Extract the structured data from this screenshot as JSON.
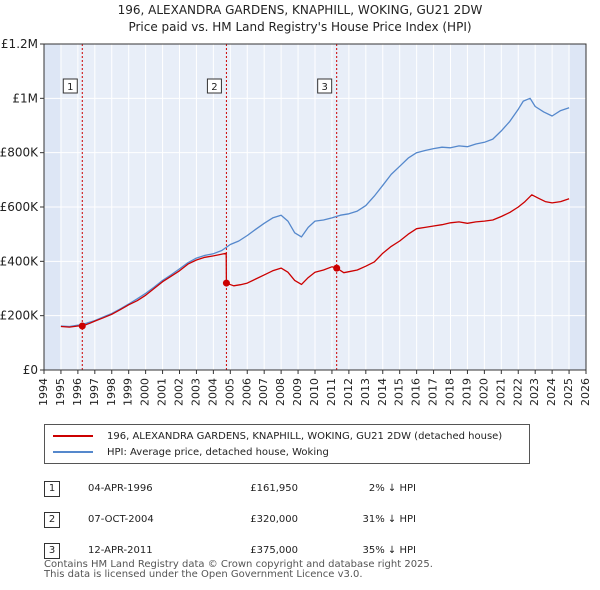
{
  "title_line1": "196, ALEXANDRA GARDENS, KNAPHILL, WOKING, GU21 2DW",
  "title_line2": "Price paid vs. HM Land Registry's House Price Index (HPI)",
  "colors": {
    "red": "#cc0000",
    "blue": "#5588cc",
    "shade": "#dde6f5",
    "grid": "#ffffff",
    "marker_line": "#cc0000"
  },
  "legend": {
    "red_label": "196, ALEXANDRA GARDENS, KNAPHILL, WOKING, GU21 2DW (detached house)",
    "blue_label": "HPI: Average price, detached house, Woking"
  },
  "sales": [
    {
      "num": "1",
      "date": "04-APR-1996",
      "price": "£161,950",
      "diff": "2% ↓ HPI"
    },
    {
      "num": "2",
      "date": "07-OCT-2004",
      "price": "£320,000",
      "diff": "31% ↓ HPI"
    },
    {
      "num": "3",
      "date": "12-APR-2011",
      "price": "£375,000",
      "diff": "35% ↓ HPI"
    }
  ],
  "footer_line1": "Contains HM Land Registry data © Crown copyright and database right 2025.",
  "footer_line2": "This data is licensed under the Open Government Licence v3.0.",
  "chart_data": {
    "type": "line",
    "title": "196, ALEXANDRA GARDENS, KNAPHILL, WOKING, GU21 2DW",
    "subtitle": "Price paid vs. HM Land Registry's House Price Index (HPI)",
    "xlim": [
      1994,
      2026
    ],
    "ylim": [
      0,
      1200000
    ],
    "x_ticks": [
      1994,
      1995,
      1996,
      1997,
      1998,
      1999,
      2000,
      2001,
      2002,
      2003,
      2004,
      2005,
      2006,
      2007,
      2008,
      2009,
      2010,
      2011,
      2012,
      2013,
      2014,
      2015,
      2016,
      2017,
      2018,
      2019,
      2020,
      2021,
      2022,
      2023,
      2024,
      2025,
      2026
    ],
    "y_ticks": [
      {
        "value": 0,
        "label": "£0"
      },
      {
        "value": 200000,
        "label": "£200K"
      },
      {
        "value": 400000,
        "label": "£400K"
      },
      {
        "value": 600000,
        "label": "£600K"
      },
      {
        "value": 800000,
        "label": "£800K"
      },
      {
        "value": 1000000,
        "label": "£1M"
      },
      {
        "value": 1200000,
        "label": "£1.2M"
      }
    ],
    "data_range": [
      1995.0,
      2025.0
    ],
    "series": [
      {
        "name": "196, ALEXANDRA GARDENS, KNAPHILL, WOKING, GU21 2DW (detached house)",
        "color": "red",
        "x": [
          1995.0,
          1995.5,
          1996.0,
          1996.26,
          1996.7,
          1997.0,
          1997.5,
          1998.0,
          1998.5,
          1999.0,
          1999.5,
          2000.0,
          2000.5,
          2001.0,
          2001.5,
          2002.0,
          2002.5,
          2003.0,
          2003.5,
          2004.0,
          2004.4,
          2004.76,
          2004.77,
          2005.2,
          2005.6,
          2006.0,
          2006.5,
          2007.0,
          2007.5,
          2008.0,
          2008.4,
          2008.8,
          2009.2,
          2009.6,
          2010.0,
          2010.5,
          2011.0,
          2011.28,
          2011.7,
          2012.0,
          2012.5,
          2013.0,
          2013.5,
          2014.0,
          2014.5,
          2015.0,
          2015.5,
          2016.0,
          2016.5,
          2017.0,
          2017.5,
          2018.0,
          2018.5,
          2019.0,
          2019.5,
          2020.0,
          2020.5,
          2021.0,
          2021.5,
          2022.0,
          2022.4,
          2022.8,
          2023.2,
          2023.6,
          2024.0,
          2024.5,
          2025.0
        ],
        "y": [
          160000,
          158000,
          162000,
          161950,
          172000,
          180000,
          192000,
          205000,
          222000,
          240000,
          255000,
          275000,
          300000,
          325000,
          345000,
          365000,
          390000,
          405000,
          415000,
          420000,
          425000,
          430000,
          320000,
          310000,
          314000,
          320000,
          335000,
          350000,
          365000,
          375000,
          360000,
          330000,
          315000,
          340000,
          360000,
          368000,
          380000,
          375000,
          358000,
          362000,
          368000,
          382000,
          398000,
          430000,
          455000,
          475000,
          500000,
          520000,
          525000,
          530000,
          535000,
          542000,
          545000,
          540000,
          545000,
          548000,
          552000,
          565000,
          580000,
          600000,
          620000,
          645000,
          632000,
          620000,
          615000,
          620000,
          630000
        ]
      },
      {
        "name": "HPI: Average price, detached house, Woking",
        "color": "blue",
        "x": [
          1995.0,
          1995.5,
          1996.0,
          1996.5,
          1997.0,
          1997.5,
          1998.0,
          1998.5,
          1999.0,
          1999.5,
          2000.0,
          2000.5,
          2001.0,
          2001.5,
          2002.0,
          2002.5,
          2003.0,
          2003.5,
          2004.0,
          2004.5,
          2005.0,
          2005.5,
          2006.0,
          2006.5,
          2007.0,
          2007.5,
          2008.0,
          2008.4,
          2008.8,
          2009.2,
          2009.6,
          2010.0,
          2010.5,
          2011.0,
          2011.5,
          2012.0,
          2012.5,
          2013.0,
          2013.5,
          2014.0,
          2014.5,
          2015.0,
          2015.5,
          2016.0,
          2016.5,
          2017.0,
          2017.5,
          2018.0,
          2018.5,
          2019.0,
          2019.5,
          2020.0,
          2020.5,
          2021.0,
          2021.5,
          2022.0,
          2022.3,
          2022.7,
          2023.0,
          2023.5,
          2024.0,
          2024.5,
          2025.0
        ],
        "y": [
          162000,
          160000,
          165000,
          172000,
          182000,
          195000,
          208000,
          225000,
          243000,
          262000,
          282000,
          305000,
          330000,
          350000,
          372000,
          395000,
          412000,
          422000,
          428000,
          440000,
          462000,
          475000,
          495000,
          518000,
          540000,
          560000,
          570000,
          548000,
          505000,
          490000,
          525000,
          548000,
          552000,
          560000,
          570000,
          575000,
          585000,
          605000,
          640000,
          680000,
          720000,
          750000,
          780000,
          800000,
          808000,
          815000,
          820000,
          818000,
          825000,
          822000,
          832000,
          838000,
          850000,
          880000,
          915000,
          960000,
          990000,
          1000000,
          970000,
          950000,
          935000,
          955000,
          965000
        ]
      }
    ],
    "sales_markers": [
      {
        "label": "1",
        "x": 1996.26,
        "y": 161950
      },
      {
        "label": "2",
        "x": 2004.77,
        "y": 320000
      },
      {
        "label": "3",
        "x": 2011.28,
        "y": 375000
      }
    ]
  }
}
